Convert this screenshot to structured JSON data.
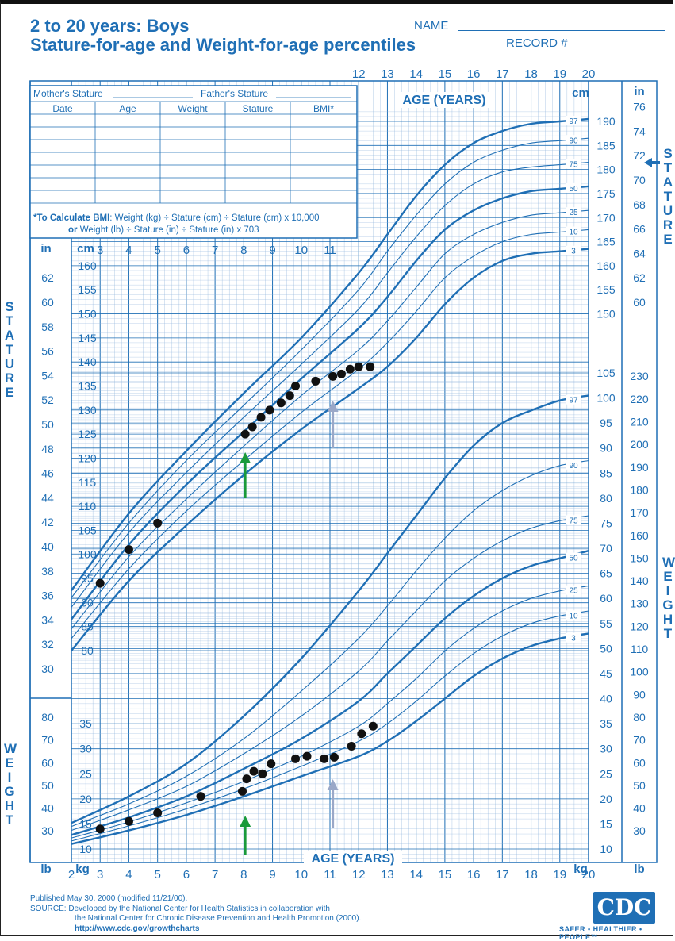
{
  "header": {
    "title_line1": "2 to 20 years: Boys",
    "title_line2": "Stature-for-age and Weight-for-age percentiles",
    "name_label": "NAME",
    "record_label": "RECORD #"
  },
  "form": {
    "mother_stature": "Mother's Stature",
    "father_stature": "Father's Stature",
    "columns": [
      "Date",
      "Age",
      "Weight",
      "Stature",
      "BMI*"
    ],
    "bmi_note_bold": "*To Calculate BMI",
    "bmi_note_1": ": Weight (kg) ÷ Stature (cm) ÷ Stature (cm) x 10,000",
    "bmi_note_or": "or",
    "bmi_note_2": " Weight (lb) ÷ Stature (in) ÷ Stature (in) x 703"
  },
  "labels": {
    "age_years_top": "AGE (YEARS)",
    "age_years_bottom": "AGE (YEARS)",
    "stature_letters": "S\nT\nA\nT\nU\nR\nE",
    "weight_letters": "W\nE\nI\nG\nH\nT",
    "unit_cm": "cm",
    "unit_in": "in",
    "unit_kg": "kg",
    "unit_lb": "lb"
  },
  "footer": {
    "line1": "Published May 30, 2000 (modified 11/21/00).",
    "line2": "SOURCE: Developed by the National Center for Health Statistics in collaboration with",
    "line3": "the National Center for Chronic Disease Prevention and Health Promotion (2000).",
    "line4": "http://www.cdc.gov/growthcharts",
    "logo": "CDC",
    "tagline": "SAFER • HEALTHIER • PEOPLE™"
  },
  "colors": {
    "chart_blue": "#1f6fb5",
    "grid_blue": "#8fb4dc",
    "arrow_green": "#1a9a3a",
    "arrow_gray": "#9aa8c8",
    "dots": "#111111"
  },
  "chart_data": {
    "type": "line",
    "title": "Stature-for-age and Weight-for-age percentiles",
    "x_label": "AGE (YEARS)",
    "x_range": [
      2,
      20
    ],
    "x_ticks": [
      2,
      3,
      4,
      5,
      6,
      7,
      8,
      9,
      10,
      11,
      12,
      13,
      14,
      15,
      16,
      17,
      18,
      19,
      20
    ],
    "stature": {
      "y_label": "STATURE",
      "y_unit_left": "cm",
      "y_range_cm": [
        77,
        192
      ],
      "y_ticks_cm": [
        80,
        85,
        90,
        95,
        100,
        105,
        110,
        115,
        120,
        125,
        130,
        135,
        140,
        145,
        150,
        155,
        160,
        165,
        170,
        175,
        180,
        185,
        190
      ],
      "y_ticks_in": [
        30,
        32,
        34,
        36,
        38,
        40,
        42,
        44,
        46,
        48,
        50,
        52,
        54,
        56,
        58,
        60,
        62,
        64,
        66,
        68,
        70,
        72,
        74,
        76
      ],
      "percentiles": [
        {
          "name": "97",
          "x": [
            2,
            4,
            6,
            8,
            10,
            12,
            13,
            14,
            15,
            16,
            17,
            18,
            19,
            20
          ],
          "y": [
            92.5,
            108.5,
            121.5,
            133.5,
            145,
            158.5,
            166.5,
            174.5,
            181,
            185.5,
            188,
            189.5,
            190,
            190.5
          ]
        },
        {
          "name": "90",
          "x": [
            2,
            4,
            6,
            8,
            10,
            12,
            13,
            14,
            15,
            16,
            17,
            18,
            19,
            20
          ],
          "y": [
            91,
            106.5,
            119.5,
            131,
            142.5,
            155,
            163,
            170.5,
            177,
            181.5,
            184,
            185.5,
            186,
            186.5
          ]
        },
        {
          "name": "75",
          "x": [
            2,
            4,
            6,
            8,
            10,
            12,
            13,
            14,
            15,
            16,
            17,
            18,
            19,
            20
          ],
          "y": [
            89,
            104.5,
            117,
            128.5,
            139.5,
            151,
            158.5,
            166,
            172.5,
            177,
            179.5,
            180.5,
            181,
            181.5
          ]
        },
        {
          "name": "50",
          "x": [
            2,
            4,
            6,
            8,
            10,
            12,
            13,
            14,
            15,
            16,
            17,
            18,
            19,
            20
          ],
          "y": [
            86.5,
            102,
            114.5,
            125.5,
            136.5,
            147,
            153.5,
            161,
            167.5,
            171.5,
            174,
            175.5,
            176,
            176.5
          ]
        },
        {
          "name": "25",
          "x": [
            2,
            4,
            6,
            8,
            10,
            12,
            13,
            14,
            15,
            16,
            17,
            18,
            19,
            20
          ],
          "y": [
            84.5,
            99.5,
            111.5,
            122.5,
            133,
            142.5,
            148.5,
            155.5,
            162.5,
            166.5,
            169,
            170.5,
            171,
            171.5
          ]
        },
        {
          "name": "10",
          "x": [
            2,
            4,
            6,
            8,
            10,
            12,
            13,
            14,
            15,
            16,
            17,
            18,
            19,
            20
          ],
          "y": [
            82.5,
            97,
            109,
            119.5,
            129.5,
            138.5,
            144,
            150.5,
            157.5,
            162,
            165,
            166.5,
            167,
            167.5
          ]
        },
        {
          "name": "3",
          "x": [
            2,
            4,
            6,
            8,
            10,
            12,
            13,
            14,
            15,
            16,
            17,
            18,
            19,
            20
          ],
          "y": [
            80,
            94.5,
            106,
            116.5,
            126,
            134.5,
            139,
            145,
            152,
            157.5,
            161,
            162.5,
            163,
            163.5
          ]
        }
      ],
      "measurements": {
        "x": [
          3.0,
          4.0,
          5.0,
          8.05,
          8.3,
          8.6,
          8.9,
          9.3,
          9.6,
          9.8,
          10.5,
          11.1,
          11.4,
          11.7,
          12.0,
          12.4
        ],
        "y": [
          94.0,
          101.0,
          106.5,
          125.0,
          126.5,
          128.5,
          130.0,
          131.5,
          133.0,
          135.0,
          136.0,
          137.0,
          137.5,
          138.5,
          139.0,
          139.0
        ]
      }
    },
    "weight": {
      "y_label": "WEIGHT",
      "y_unit_left": "kg",
      "y_range_kg": [
        8,
        106
      ],
      "y_ticks_kg": [
        10,
        15,
        20,
        25,
        30,
        35,
        40,
        45,
        50,
        55,
        60,
        65,
        70,
        75,
        80,
        85,
        90,
        95,
        100,
        105
      ],
      "y_ticks_lb": [
        30,
        40,
        50,
        60,
        70,
        80,
        90,
        100,
        110,
        120,
        130,
        140,
        150,
        160,
        170,
        180,
        190,
        200,
        210,
        220,
        230
      ],
      "percentiles": [
        {
          "name": "97",
          "x": [
            2,
            4,
            6,
            8,
            10,
            12,
            13,
            14,
            15,
            16,
            17,
            18,
            19,
            20
          ],
          "y": [
            15.2,
            20.5,
            27,
            36.5,
            48,
            61.5,
            69,
            76.5,
            84,
            90.5,
            95,
            97.5,
            99.5,
            100.5
          ]
        },
        {
          "name": "90",
          "x": [
            2,
            4,
            6,
            8,
            10,
            12,
            13,
            14,
            15,
            16,
            17,
            18,
            19,
            20
          ],
          "y": [
            14.5,
            19,
            24.5,
            32,
            41.5,
            52,
            58.5,
            65.5,
            72,
            77.5,
            81.5,
            84.5,
            86.5,
            87.5
          ]
        },
        {
          "name": "75",
          "x": [
            2,
            4,
            6,
            8,
            10,
            12,
            13,
            14,
            15,
            16,
            17,
            18,
            19,
            20
          ],
          "y": [
            13.7,
            17.8,
            22.5,
            29,
            36.5,
            45.5,
            51.5,
            57.5,
            63.5,
            68,
            71.5,
            74,
            75.5,
            76.5
          ]
        },
        {
          "name": "50",
          "x": [
            2,
            4,
            6,
            8,
            10,
            12,
            13,
            14,
            15,
            16,
            17,
            18,
            19,
            20
          ],
          "y": [
            12.8,
            16.3,
            20.5,
            26,
            32,
            39.5,
            45,
            50.5,
            56,
            60.5,
            64,
            66.5,
            68,
            69.5
          ]
        },
        {
          "name": "25",
          "x": [
            2,
            4,
            6,
            8,
            10,
            12,
            13,
            14,
            15,
            16,
            17,
            18,
            19,
            20
          ],
          "y": [
            12.2,
            15.4,
            19.2,
            23.5,
            28.5,
            34.5,
            39,
            44,
            49.5,
            54,
            57.5,
            60,
            61.5,
            62.5
          ]
        },
        {
          "name": "10",
          "x": [
            2,
            4,
            6,
            8,
            10,
            12,
            13,
            14,
            15,
            16,
            17,
            18,
            19,
            20
          ],
          "y": [
            11.6,
            14.6,
            18,
            22,
            26.5,
            31.5,
            35,
            39.5,
            44.5,
            49,
            52.5,
            55,
            56.5,
            57.5
          ]
        },
        {
          "name": "3",
          "x": [
            2,
            4,
            6,
            8,
            10,
            12,
            13,
            14,
            15,
            16,
            17,
            18,
            19,
            20
          ],
          "y": [
            11,
            13.7,
            16.8,
            20.5,
            24.5,
            28.5,
            31.5,
            35.5,
            40,
            44.5,
            48,
            50.5,
            52,
            53
          ]
        }
      ],
      "measurements": {
        "x": [
          3.0,
          4.0,
          5.0,
          6.5,
          7.95,
          8.1,
          8.35,
          8.65,
          8.95,
          9.8,
          10.2,
          10.8,
          11.15,
          11.75,
          12.1,
          12.5
        ],
        "y": [
          14.0,
          15.5,
          17.2,
          20.5,
          21.5,
          24.0,
          25.5,
          25.0,
          27.0,
          28.0,
          28.5,
          28.0,
          28.3,
          30.5,
          33.0,
          34.5
        ]
      }
    },
    "annotations": [
      {
        "type": "arrow",
        "color": "green",
        "x": 8.05,
        "panel": "stature"
      },
      {
        "type": "arrow",
        "color": "gray",
        "x": 11.1,
        "panel": "stature"
      },
      {
        "type": "arrow",
        "color": "green",
        "x": 8.05,
        "panel": "weight"
      },
      {
        "type": "arrow",
        "color": "gray",
        "x": 11.1,
        "panel": "weight"
      }
    ]
  }
}
